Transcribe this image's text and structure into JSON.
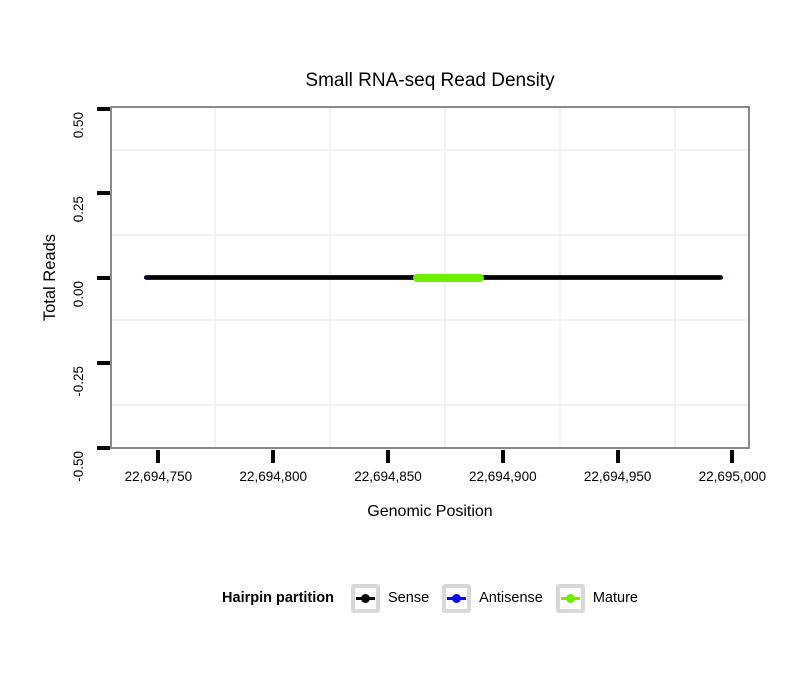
{
  "chart_data": {
    "type": "line",
    "title": "Small RNA-seq Read Density",
    "xlabel": "Genomic Position",
    "ylabel": "Total Reads",
    "xlim": [
      22694730,
      22695007
    ],
    "ylim": [
      -0.5,
      0.5
    ],
    "x_ticks": {
      "values": [
        22694750,
        22694800,
        22694850,
        22694900,
        22694950,
        22695000
      ],
      "labels": [
        "22,694,750",
        "22,694,800",
        "22,694,850",
        "22,694,900",
        "22,694,950",
        "22,695,000"
      ]
    },
    "y_ticks": {
      "values": [
        0.5,
        0.25,
        0,
        -0.25,
        -0.5
      ],
      "labels": [
        "0.50",
        "0.25",
        "0.00",
        "-0.25",
        "-0.50"
      ]
    },
    "grid": {
      "style": "minor-gridlines-between-ticks",
      "color": "#f2f2f2",
      "background": "#ffffff"
    },
    "series": [
      {
        "name": "Antisense",
        "color": "#0a0aff",
        "y": 0,
        "x_start": 22694744,
        "x_end": 22694996,
        "thickness_px": 5,
        "z": 1
      },
      {
        "name": "Sense",
        "color": "#000000",
        "y": 0,
        "x_start": 22694744,
        "x_end": 22694996,
        "thickness_px": 3,
        "z": 2
      },
      {
        "name": "Mature",
        "color": "#70ee00",
        "y": 0,
        "x_start": 22694861,
        "x_end": 22694892,
        "thickness_px": 8,
        "z": 3
      }
    ],
    "legend": {
      "title": "Hairpin partition",
      "position": "bottom",
      "entries": [
        "Sense",
        "Antisense",
        "Mature"
      ]
    }
  },
  "legend": {
    "title": "Hairpin partition",
    "items": [
      {
        "label": "Sense",
        "color": "#000000"
      },
      {
        "label": "Antisense",
        "color": "#0a0aff"
      },
      {
        "label": "Mature",
        "color": "#70ee00"
      }
    ]
  }
}
